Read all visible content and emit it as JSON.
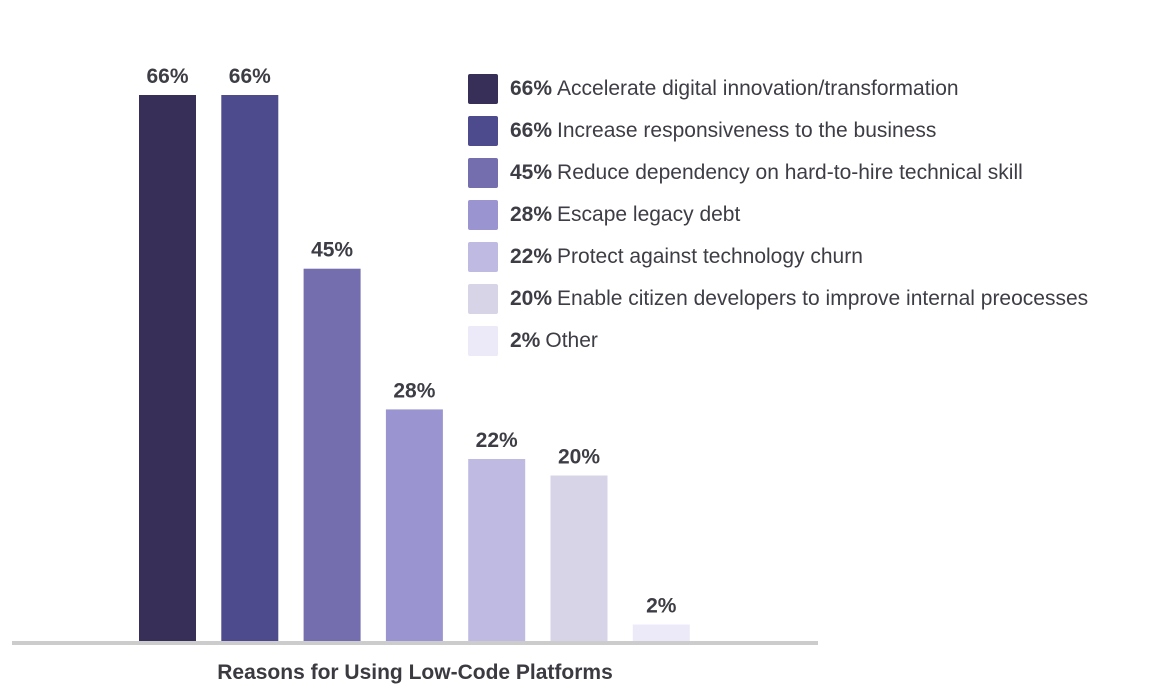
{
  "chart_data": {
    "type": "bar",
    "title": "",
    "xlabel": "Reasons for Using Low-Code Platforms",
    "ylabel": "",
    "ylim": [
      0,
      66
    ],
    "grid": false,
    "legend_position": "top-right",
    "categories": [
      "Accelerate digital innovation/transformation",
      "Increase responsiveness to the business",
      "Reduce dependency on hard-to-hire technical skill",
      "Escape legacy debt",
      "Protect against technology churn",
      "Enable citizen developers to improve internal preocesses",
      "Other"
    ],
    "values": [
      66,
      66,
      45,
      28,
      22,
      20,
      2
    ],
    "value_labels": [
      "66%",
      "66%",
      "45%",
      "28%",
      "22%",
      "20%",
      "2%"
    ],
    "colors": [
      "#372f58",
      "#4e4a8e",
      "#746eae",
      "#9a95d0",
      "#bfbae2",
      "#d7d4e7",
      "#ece9f8"
    ]
  }
}
